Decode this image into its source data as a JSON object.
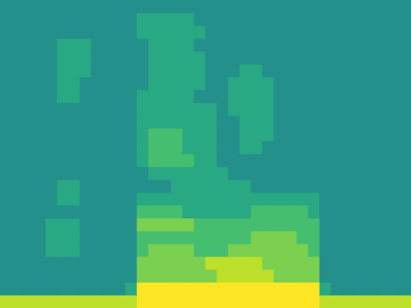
{
  "chart_data": {
    "type": "heatmap",
    "tick_labels": false,
    "color_range": [
      0,
      10
    ],
    "cells": [
      [
        5,
        5,
        5,
        5,
        5,
        5,
        5,
        5,
        5,
        5,
        5,
        5,
        5,
        5,
        5,
        5,
        5,
        5,
        5,
        5,
        5,
        5,
        5,
        5,
        5,
        5,
        5,
        5,
        5,
        5,
        5,
        5,
        5,
        5,
        5,
        5
      ],
      [
        5,
        5,
        5,
        5,
        5,
        5,
        5,
        5,
        5,
        5,
        5,
        5,
        6,
        6,
        6,
        6,
        6,
        5,
        5,
        5,
        5,
        5,
        5,
        5,
        5,
        5,
        5,
        5,
        5,
        5,
        5,
        5,
        5,
        5,
        5,
        5
      ],
      [
        5,
        5,
        5,
        5,
        5,
        5,
        5,
        5,
        5,
        5,
        5,
        5,
        6,
        6,
        6,
        6,
        6,
        6,
        5,
        5,
        5,
        5,
        5,
        5,
        5,
        5,
        5,
        5,
        5,
        5,
        5,
        5,
        5,
        5,
        5,
        5
      ],
      [
        5,
        5,
        5,
        5,
        5,
        6,
        6,
        6,
        5,
        5,
        5,
        5,
        5,
        6,
        6,
        6,
        6,
        5,
        5,
        5,
        5,
        5,
        5,
        5,
        5,
        5,
        5,
        5,
        5,
        5,
        5,
        5,
        5,
        5,
        5,
        5
      ],
      [
        5,
        5,
        5,
        5,
        5,
        6,
        6,
        6,
        5,
        5,
        5,
        5,
        5,
        6,
        6,
        6,
        6,
        6,
        5,
        5,
        5,
        5,
        5,
        5,
        5,
        5,
        5,
        5,
        5,
        5,
        5,
        5,
        5,
        5,
        5,
        5
      ],
      [
        5,
        5,
        5,
        5,
        5,
        6,
        6,
        6,
        5,
        5,
        5,
        5,
        5,
        6,
        6,
        6,
        6,
        6,
        5,
        5,
        5,
        6,
        6,
        5,
        5,
        5,
        5,
        5,
        5,
        5,
        5,
        5,
        5,
        5,
        5,
        5
      ],
      [
        5,
        5,
        5,
        5,
        5,
        6,
        6,
        5,
        5,
        5,
        5,
        5,
        5,
        6,
        6,
        6,
        6,
        6,
        5,
        5,
        6,
        6,
        6,
        6,
        5,
        5,
        5,
        5,
        5,
        5,
        5,
        5,
        5,
        5,
        5,
        5
      ],
      [
        5,
        5,
        5,
        5,
        5,
        6,
        6,
        5,
        5,
        5,
        5,
        5,
        6,
        6,
        6,
        6,
        6,
        5,
        5,
        5,
        6,
        6,
        6,
        6,
        5,
        5,
        5,
        5,
        5,
        5,
        5,
        5,
        5,
        5,
        5,
        5
      ],
      [
        5,
        5,
        5,
        5,
        5,
        5,
        5,
        5,
        5,
        5,
        5,
        5,
        6,
        6,
        6,
        6,
        6,
        6,
        6,
        5,
        6,
        6,
        6,
        6,
        5,
        5,
        5,
        5,
        5,
        5,
        5,
        5,
        5,
        5,
        5,
        5
      ],
      [
        5,
        5,
        5,
        5,
        5,
        5,
        5,
        5,
        5,
        5,
        5,
        5,
        6,
        6,
        6,
        6,
        6,
        6,
        6,
        5,
        5,
        6,
        6,
        6,
        5,
        5,
        5,
        5,
        5,
        5,
        5,
        5,
        5,
        5,
        5,
        5
      ],
      [
        5,
        5,
        5,
        5,
        5,
        5,
        5,
        5,
        5,
        5,
        5,
        5,
        6,
        7,
        7,
        7,
        6,
        6,
        6,
        5,
        5,
        6,
        6,
        6,
        5,
        5,
        5,
        5,
        5,
        5,
        5,
        5,
        5,
        5,
        5,
        5
      ],
      [
        5,
        5,
        5,
        5,
        5,
        5,
        5,
        5,
        5,
        5,
        5,
        5,
        6,
        7,
        7,
        7,
        6,
        6,
        6,
        5,
        5,
        6,
        6,
        5,
        5,
        5,
        5,
        5,
        5,
        5,
        5,
        5,
        5,
        5,
        5,
        5
      ],
      [
        5,
        5,
        5,
        5,
        5,
        5,
        5,
        5,
        5,
        5,
        5,
        5,
        6,
        7,
        7,
        7,
        7,
        6,
        6,
        5,
        5,
        5,
        5,
        5,
        5,
        5,
        5,
        5,
        5,
        5,
        5,
        5,
        5,
        5,
        5,
        5
      ],
      [
        5,
        5,
        5,
        5,
        5,
        5,
        5,
        5,
        5,
        5,
        5,
        5,
        5,
        6,
        6,
        6,
        6,
        6,
        6,
        6,
        5,
        5,
        5,
        5,
        5,
        5,
        5,
        5,
        5,
        5,
        5,
        5,
        5,
        5,
        5,
        5
      ],
      [
        5,
        5,
        5,
        5,
        5,
        6,
        6,
        5,
        5,
        5,
        5,
        5,
        5,
        5,
        5,
        6,
        6,
        6,
        6,
        6,
        6,
        6,
        5,
        5,
        5,
        5,
        5,
        5,
        5,
        5,
        5,
        5,
        5,
        5,
        5,
        5
      ],
      [
        5,
        5,
        5,
        5,
        5,
        6,
        6,
        5,
        5,
        5,
        5,
        5,
        6,
        6,
        6,
        6,
        6,
        6,
        6,
        6,
        6,
        6,
        6,
        6,
        6,
        6,
        6,
        6,
        5,
        5,
        5,
        5,
        5,
        5,
        5,
        5
      ],
      [
        5,
        5,
        5,
        5,
        5,
        5,
        5,
        5,
        5,
        5,
        5,
        5,
        7,
        7,
        7,
        7,
        6,
        6,
        6,
        6,
        6,
        6,
        7,
        7,
        7,
        7,
        7,
        6,
        5,
        5,
        5,
        5,
        5,
        5,
        5,
        5
      ],
      [
        5,
        5,
        5,
        5,
        6,
        6,
        6,
        5,
        5,
        5,
        5,
        5,
        8,
        8,
        8,
        8,
        8,
        7,
        7,
        7,
        7,
        7,
        7,
        7,
        7,
        7,
        7,
        7,
        5,
        5,
        5,
        5,
        5,
        5,
        5,
        5
      ],
      [
        5,
        5,
        5,
        5,
        6,
        6,
        6,
        5,
        5,
        5,
        5,
        5,
        7,
        7,
        7,
        7,
        7,
        7,
        7,
        7,
        7,
        7,
        8,
        8,
        8,
        8,
        7,
        7,
        5,
        5,
        5,
        5,
        5,
        5,
        5,
        5
      ],
      [
        5,
        5,
        5,
        5,
        6,
        6,
        6,
        5,
        5,
        5,
        5,
        5,
        7,
        8,
        8,
        8,
        8,
        7,
        7,
        7,
        8,
        8,
        8,
        8,
        8,
        8,
        8,
        7,
        5,
        5,
        5,
        5,
        5,
        5,
        5,
        5
      ],
      [
        5,
        5,
        5,
        5,
        5,
        5,
        5,
        5,
        5,
        5,
        5,
        5,
        8,
        8,
        8,
        8,
        8,
        8,
        9,
        9,
        9,
        9,
        9,
        8,
        8,
        8,
        8,
        8,
        5,
        5,
        5,
        5,
        5,
        5,
        5,
        5
      ],
      [
        5,
        5,
        5,
        5,
        5,
        5,
        5,
        5,
        5,
        5,
        5,
        5,
        8,
        8,
        8,
        8,
        8,
        8,
        8,
        9,
        9,
        9,
        9,
        9,
        8,
        8,
        8,
        8,
        5,
        5,
        5,
        5,
        5,
        5,
        5,
        5
      ],
      [
        5,
        5,
        5,
        5,
        5,
        5,
        5,
        5,
        5,
        5,
        5,
        6,
        10,
        10,
        10,
        10,
        10,
        10,
        10,
        10,
        10,
        10,
        10,
        10,
        10,
        10,
        10,
        10,
        6,
        5,
        5,
        5,
        5,
        5,
        5,
        5
      ],
      [
        9,
        9,
        9,
        9,
        9,
        9,
        9,
        9,
        9,
        9,
        9,
        9,
        10,
        10,
        10,
        10,
        10,
        10,
        10,
        10,
        10,
        10,
        10,
        10,
        10,
        10,
        10,
        10,
        9,
        9,
        9,
        9,
        9,
        9,
        9,
        9
      ]
    ]
  }
}
